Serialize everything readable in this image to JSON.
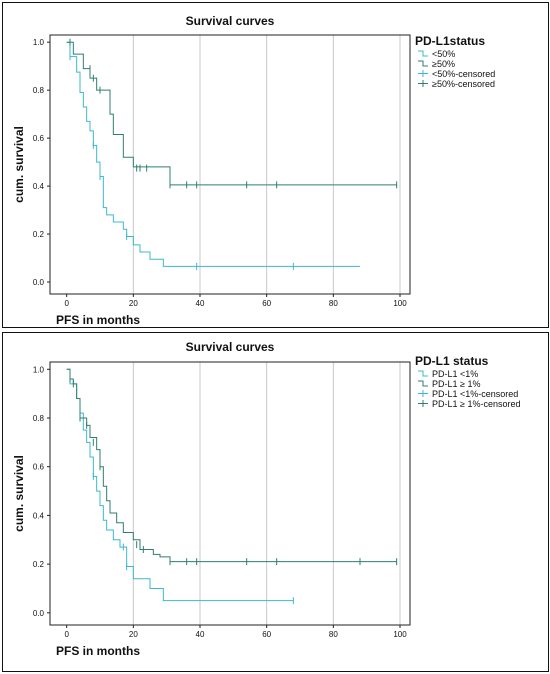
{
  "chart_data": [
    {
      "type": "line",
      "title": "Survival curves",
      "xlabel": "PFS in months",
      "ylabel": "cum. survival",
      "xlim": [
        -5,
        103
      ],
      "ylim": [
        -0.05,
        1.03
      ],
      "xticks": [
        0,
        20,
        40,
        60,
        80,
        100
      ],
      "yticks": [
        0.0,
        0.2,
        0.4,
        0.6,
        0.8,
        1.0
      ],
      "ytick_labels": [
        "0.0",
        "0.2",
        "0.4",
        "0.6",
        "0.8",
        "1.0"
      ],
      "grid": "vertical",
      "legend_title": "PD-L1status",
      "legend_position": "right",
      "series": [
        {
          "name": "<50%",
          "color": "#3cb8cf",
          "steps": [
            [
              0,
              1.0
            ],
            [
              1,
              0.94
            ],
            [
              3,
              0.875
            ],
            [
              4,
              0.79
            ],
            [
              5,
              0.73
            ],
            [
              6,
              0.67
            ],
            [
              7,
              0.63
            ],
            [
              8,
              0.57
            ],
            [
              9,
              0.5
            ],
            [
              10,
              0.44
            ],
            [
              11,
              0.31
            ],
            [
              12,
              0.28
            ],
            [
              14,
              0.25
            ],
            [
              17,
              0.22
            ],
            [
              18,
              0.19
            ],
            [
              20,
              0.155
            ],
            [
              22,
              0.125
            ],
            [
              25,
              0.095
            ],
            [
              29,
              0.065
            ],
            [
              88,
              0.065
            ]
          ],
          "censored": [
            [
              1,
              0.94
            ],
            [
              8,
              0.57
            ],
            [
              10,
              0.44
            ],
            [
              18,
              0.19
            ],
            [
              39,
              0.065
            ],
            [
              68,
              0.065
            ]
          ]
        },
        {
          "name": "≥50%",
          "color": "#2f7f6f",
          "steps": [
            [
              0,
              1.0
            ],
            [
              2,
              0.95
            ],
            [
              5,
              0.89
            ],
            [
              7,
              0.85
            ],
            [
              9,
              0.8
            ],
            [
              13,
              0.7
            ],
            [
              14,
              0.615
            ],
            [
              17,
              0.52
            ],
            [
              20,
              0.48
            ],
            [
              31,
              0.405
            ],
            [
              99,
              0.405
            ]
          ],
          "censored": [
            [
              1,
              1.0
            ],
            [
              7,
              0.89
            ],
            [
              8,
              0.85
            ],
            [
              10,
              0.8
            ],
            [
              21,
              0.475
            ],
            [
              22,
              0.475
            ],
            [
              24,
              0.475
            ],
            [
              31,
              0.405
            ],
            [
              36,
              0.405
            ],
            [
              39,
              0.405
            ],
            [
              54,
              0.405
            ],
            [
              63,
              0.405
            ],
            [
              99,
              0.405
            ]
          ]
        }
      ],
      "legend": [
        "<50%",
        "≥50%",
        "<50%-censored",
        "≥50%-censored"
      ]
    },
    {
      "type": "line",
      "title": "Survival curves",
      "xlabel": "PFS in months",
      "ylabel": "cum. survival",
      "xlim": [
        -5,
        103
      ],
      "ylim": [
        -0.05,
        1.03
      ],
      "xticks": [
        0,
        20,
        40,
        60,
        80,
        100
      ],
      "yticks": [
        0.0,
        0.2,
        0.4,
        0.6,
        0.8,
        1.0
      ],
      "ytick_labels": [
        "0.0",
        "0.2",
        "0.4",
        "0.6",
        "0.8",
        "1.0"
      ],
      "grid": "vertical",
      "legend_title": "PD-L1 status",
      "legend_position": "right",
      "series": [
        {
          "name": "PD-L1 <1%",
          "color": "#3cb8cf",
          "steps": [
            [
              0,
              1.0
            ],
            [
              1,
              0.94
            ],
            [
              3,
              0.88
            ],
            [
              4,
              0.82
            ],
            [
              5,
              0.75
            ],
            [
              6,
              0.7
            ],
            [
              7,
              0.64
            ],
            [
              8,
              0.56
            ],
            [
              9,
              0.5
            ],
            [
              10,
              0.44
            ],
            [
              11,
              0.38
            ],
            [
              12,
              0.34
            ],
            [
              14,
              0.3
            ],
            [
              16,
              0.27
            ],
            [
              18,
              0.19
            ],
            [
              20,
              0.14
            ],
            [
              25,
              0.1
            ],
            [
              29,
              0.05
            ],
            [
              68,
              0.05
            ]
          ],
          "censored": [
            [
              8,
              0.56
            ],
            [
              17,
              0.27
            ],
            [
              18,
              0.19
            ],
            [
              68,
              0.05
            ]
          ]
        },
        {
          "name": "PD-L1 ≥ 1%",
          "color": "#2f7f6f",
          "steps": [
            [
              0,
              1.0
            ],
            [
              1,
              0.96
            ],
            [
              2,
              0.94
            ],
            [
              3,
              0.88
            ],
            [
              4,
              0.8
            ],
            [
              6,
              0.77
            ],
            [
              7,
              0.72
            ],
            [
              9,
              0.67
            ],
            [
              10,
              0.6
            ],
            [
              11,
              0.52
            ],
            [
              12,
              0.46
            ],
            [
              13,
              0.41
            ],
            [
              15,
              0.37
            ],
            [
              17,
              0.33
            ],
            [
              20,
              0.3
            ],
            [
              22,
              0.26
            ],
            [
              26,
              0.24
            ],
            [
              28,
              0.23
            ],
            [
              31,
              0.21
            ],
            [
              99,
              0.21
            ]
          ],
          "censored": [
            [
              1,
              0.96
            ],
            [
              2,
              0.94
            ],
            [
              4,
              0.8
            ],
            [
              6,
              0.77
            ],
            [
              8,
              0.7
            ],
            [
              10,
              0.6
            ],
            [
              21,
              0.28
            ],
            [
              23,
              0.26
            ],
            [
              31,
              0.21
            ],
            [
              36,
              0.21
            ],
            [
              39,
              0.21
            ],
            [
              54,
              0.21
            ],
            [
              63,
              0.21
            ],
            [
              88,
              0.21
            ],
            [
              99,
              0.21
            ]
          ]
        }
      ],
      "legend": [
        "PD-L1 <1%",
        "PD-L1 ≥ 1%",
        "PD-L1 <1%-censored",
        "PD-L1 ≥ 1%-censored"
      ]
    }
  ]
}
